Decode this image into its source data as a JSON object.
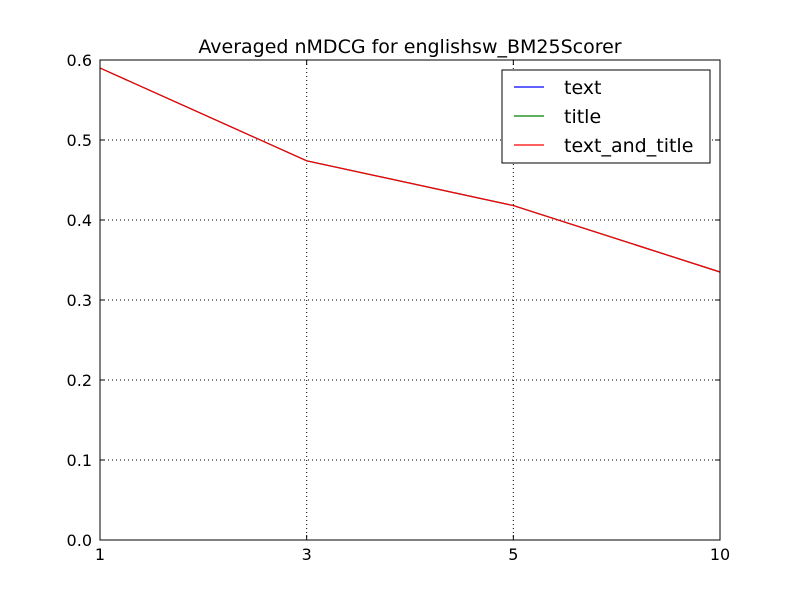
{
  "chart_data": {
    "type": "line",
    "title": "Averaged nMDCG for englishsw_BM25Scorer",
    "xlabel": "",
    "ylabel": "",
    "x": [
      "1",
      "3",
      "5",
      "10"
    ],
    "ylim": [
      0,
      0.6
    ],
    "yticks": [
      "0.0",
      "0.1",
      "0.2",
      "0.3",
      "0.4",
      "0.5",
      "0.6"
    ],
    "grid": true,
    "legend_position": "top-right",
    "series": [
      {
        "name": "text",
        "color": "#0000ff",
        "values": [
          0.59,
          0.474,
          0.418,
          0.335
        ]
      },
      {
        "name": "title",
        "color": "#008000",
        "values": [
          0.59,
          0.474,
          0.418,
          0.335
        ]
      },
      {
        "name": "text_and_title",
        "color": "#ff0000",
        "values": [
          0.59,
          0.474,
          0.418,
          0.335
        ]
      }
    ]
  }
}
